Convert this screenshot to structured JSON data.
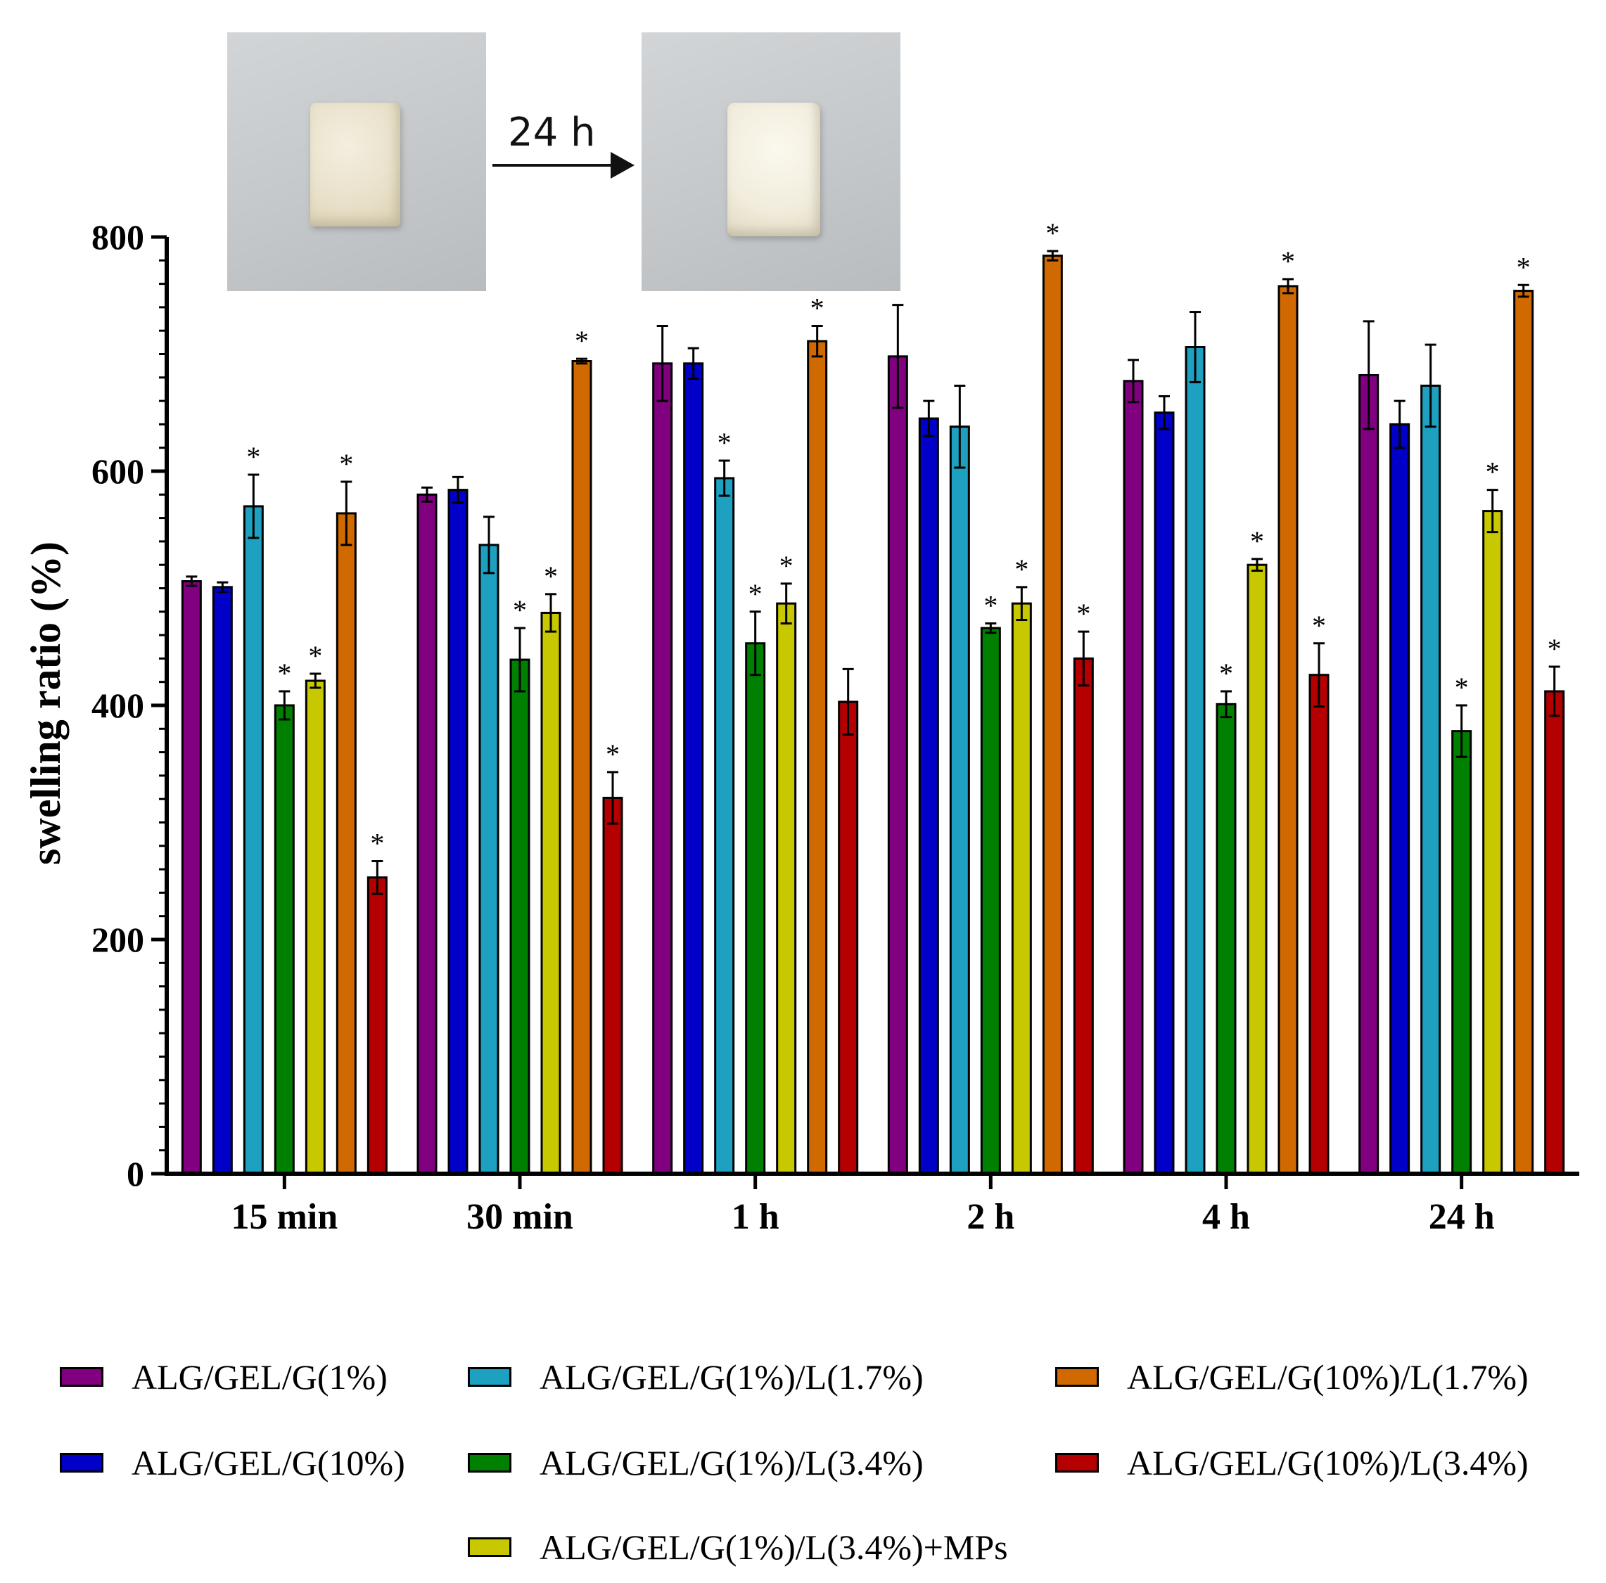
{
  "inset": {
    "arrow_label": "24 h"
  },
  "chart_data": {
    "type": "bar",
    "ylabel": "swelling ratio (%)",
    "xlabel": "",
    "ylim": [
      0,
      800
    ],
    "yticks": [
      0,
      200,
      400,
      600,
      800
    ],
    "categories": [
      "15 min",
      "30 min",
      "1 h",
      "2 h",
      "4 h",
      "24 h"
    ],
    "significance_marker": "*",
    "legend_position": "bottom",
    "series": [
      {
        "name": "ALG/GEL/G(1%)",
        "color": "#800080",
        "values": [
          506,
          580,
          692,
          698,
          677,
          682
        ],
        "errors": [
          4,
          6,
          32,
          44,
          18,
          46
        ],
        "significant": [
          false,
          false,
          false,
          false,
          false,
          false
        ]
      },
      {
        "name": "ALG/GEL/G(10%)",
        "color": "#0000c8",
        "values": [
          501,
          584,
          692,
          645,
          650,
          640
        ],
        "errors": [
          4,
          11,
          13,
          15,
          14,
          20
        ],
        "significant": [
          false,
          false,
          false,
          false,
          false,
          false
        ]
      },
      {
        "name": "ALG/GEL/G(1%)/L(1.7%)",
        "color": "#1ea0c0",
        "values": [
          570,
          537,
          594,
          638,
          706,
          673
        ],
        "errors": [
          27,
          24,
          15,
          35,
          30,
          35
        ],
        "significant": [
          true,
          false,
          true,
          false,
          false,
          false
        ]
      },
      {
        "name": "ALG/GEL/G(1%)/L(3.4%)",
        "color": "#008000",
        "values": [
          400,
          439,
          453,
          466,
          401,
          378
        ],
        "errors": [
          12,
          27,
          27,
          4,
          11,
          22
        ],
        "significant": [
          true,
          true,
          true,
          true,
          true,
          true
        ]
      },
      {
        "name": "ALG/GEL/G(1%)/L(3.4%)+MPs",
        "color": "#c8c800",
        "values": [
          421,
          479,
          487,
          487,
          520,
          566
        ],
        "errors": [
          6,
          16,
          17,
          14,
          5,
          18
        ],
        "significant": [
          true,
          true,
          true,
          true,
          true,
          true
        ]
      },
      {
        "name": "ALG/GEL/G(10%)/L(1.7%)",
        "color": "#d06a00",
        "values": [
          564,
          694,
          711,
          784,
          758,
          754
        ],
        "errors": [
          27,
          2,
          13,
          4,
          6,
          5
        ],
        "significant": [
          true,
          true,
          true,
          true,
          true,
          true
        ]
      },
      {
        "name": "ALG/GEL/G(10%)/L(3.4%)",
        "color": "#b40000",
        "values": [
          253,
          321,
          403,
          440,
          426,
          412
        ],
        "errors": [
          14,
          22,
          28,
          23,
          27,
          21
        ],
        "significant": [
          true,
          true,
          false,
          true,
          true,
          true
        ]
      }
    ]
  }
}
